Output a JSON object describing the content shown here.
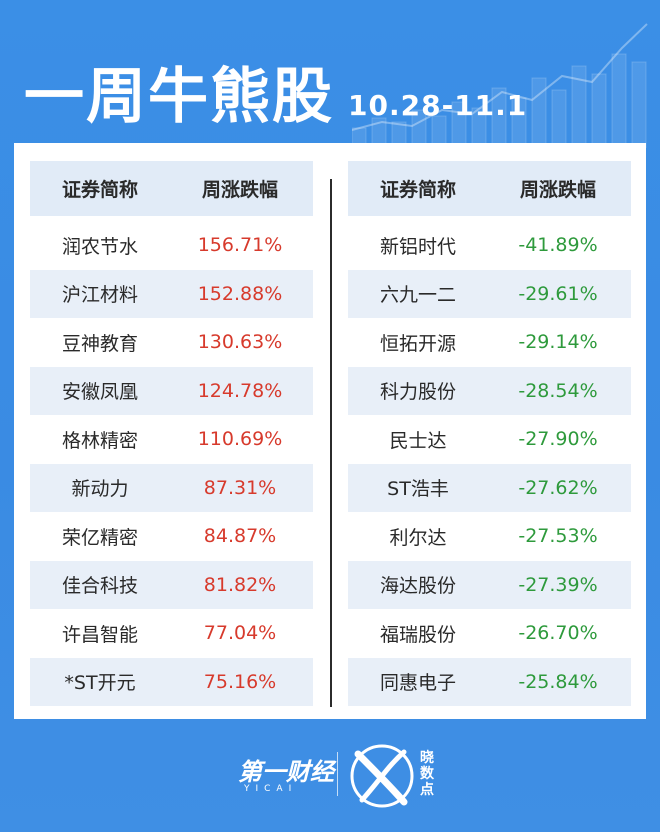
{
  "header": {
    "title": "一周牛熊股",
    "date": "10.28-11.1"
  },
  "columns": {
    "name": "证券简称",
    "change": "周涨跌幅"
  },
  "gainers": [
    {
      "name": "润农节水",
      "change": "156.71%"
    },
    {
      "name": "沪江材料",
      "change": "152.88%"
    },
    {
      "name": "豆神教育",
      "change": "130.63%"
    },
    {
      "name": "安徽凤凰",
      "change": "124.78%"
    },
    {
      "name": "格林精密",
      "change": "110.69%"
    },
    {
      "name": "新动力",
      "change": "87.31%"
    },
    {
      "name": "荣亿精密",
      "change": "84.87%"
    },
    {
      "name": "佳合科技",
      "change": "81.82%"
    },
    {
      "name": "许昌智能",
      "change": "77.04%"
    },
    {
      "name": "*ST开元",
      "change": "75.16%"
    }
  ],
  "losers": [
    {
      "name": "新铝时代",
      "change": "-41.89%"
    },
    {
      "name": "六九一二",
      "change": "-29.61%"
    },
    {
      "name": "恒拓开源",
      "change": "-29.14%"
    },
    {
      "name": "科力股份",
      "change": "-28.54%"
    },
    {
      "name": "民士达",
      "change": "-27.90%"
    },
    {
      "name": "ST浩丰",
      "change": "-27.62%"
    },
    {
      "name": "利尔达",
      "change": "-27.53%"
    },
    {
      "name": "海达股份",
      "change": "-27.39%"
    },
    {
      "name": "福瑞股份",
      "change": "-26.70%"
    },
    {
      "name": "同惠电子",
      "change": "-25.84%"
    }
  ],
  "footer": {
    "brand": "第一财经",
    "brand_en": "YICAI",
    "product": "晓数点"
  },
  "colors": {
    "background": "#3b8fe6",
    "up": "#d73a2c",
    "down": "#2e9a3c",
    "header_row": "#e1ebf7"
  }
}
